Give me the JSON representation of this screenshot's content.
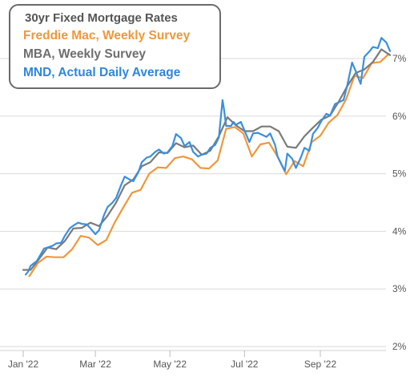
{
  "chart_data": {
    "type": "line",
    "title": "30yr Fixed Mortgage Rates",
    "x_ticks": [
      "Jan '22",
      "Mar '22",
      "May '22",
      "Jul '22",
      "Sep '22"
    ],
    "y_ticks": [
      "2%",
      "3%",
      "4%",
      "5%",
      "6%",
      "7%"
    ],
    "ylim": [
      2,
      7.5
    ],
    "grid": "horizontal",
    "legend_position": "top-left",
    "series": [
      {
        "name": "Freddie Mac, Weekly Survey",
        "color": "#f0973a",
        "points": [
          [
            "2022-01-06",
            3.22
          ],
          [
            "2022-01-13",
            3.45
          ],
          [
            "2022-01-20",
            3.56
          ],
          [
            "2022-01-27",
            3.55
          ],
          [
            "2022-02-03",
            3.55
          ],
          [
            "2022-02-10",
            3.69
          ],
          [
            "2022-02-17",
            3.92
          ],
          [
            "2022-02-24",
            3.89
          ],
          [
            "2022-03-03",
            3.76
          ],
          [
            "2022-03-10",
            3.85
          ],
          [
            "2022-03-17",
            4.16
          ],
          [
            "2022-03-24",
            4.42
          ],
          [
            "2022-03-31",
            4.67
          ],
          [
            "2022-04-07",
            4.72
          ],
          [
            "2022-04-14",
            5.0
          ],
          [
            "2022-04-21",
            5.11
          ],
          [
            "2022-04-28",
            5.1
          ],
          [
            "2022-05-05",
            5.27
          ],
          [
            "2022-05-12",
            5.3
          ],
          [
            "2022-05-19",
            5.25
          ],
          [
            "2022-05-26",
            5.1
          ],
          [
            "2022-06-02",
            5.09
          ],
          [
            "2022-06-09",
            5.23
          ],
          [
            "2022-06-16",
            5.78
          ],
          [
            "2022-06-23",
            5.81
          ],
          [
            "2022-06-30",
            5.7
          ],
          [
            "2022-07-07",
            5.3
          ],
          [
            "2022-07-14",
            5.51
          ],
          [
            "2022-07-21",
            5.54
          ],
          [
            "2022-07-28",
            5.3
          ],
          [
            "2022-08-04",
            4.99
          ],
          [
            "2022-08-11",
            5.22
          ],
          [
            "2022-08-18",
            5.13
          ],
          [
            "2022-08-25",
            5.55
          ],
          [
            "2022-09-01",
            5.66
          ],
          [
            "2022-09-08",
            5.89
          ],
          [
            "2022-09-15",
            6.02
          ],
          [
            "2022-09-22",
            6.29
          ],
          [
            "2022-09-29",
            6.7
          ],
          [
            "2022-10-06",
            6.66
          ],
          [
            "2022-10-13",
            6.92
          ],
          [
            "2022-10-20",
            6.94
          ],
          [
            "2022-10-27",
            7.08
          ]
        ]
      },
      {
        "name": "MBA, Weekly Survey",
        "color": "#7a7a7a",
        "points": [
          [
            "2022-01-01",
            3.33
          ],
          [
            "2022-01-07",
            3.33
          ],
          [
            "2022-01-14",
            3.52
          ],
          [
            "2022-01-21",
            3.72
          ],
          [
            "2022-01-28",
            3.69
          ],
          [
            "2022-02-04",
            3.83
          ],
          [
            "2022-02-11",
            4.05
          ],
          [
            "2022-02-18",
            4.06
          ],
          [
            "2022-02-25",
            4.15
          ],
          [
            "2022-03-04",
            4.09
          ],
          [
            "2022-03-11",
            4.27
          ],
          [
            "2022-03-18",
            4.5
          ],
          [
            "2022-03-25",
            4.8
          ],
          [
            "2022-04-01",
            4.9
          ],
          [
            "2022-04-08",
            5.13
          ],
          [
            "2022-04-15",
            5.2
          ],
          [
            "2022-04-22",
            5.37
          ],
          [
            "2022-04-29",
            5.36
          ],
          [
            "2022-05-06",
            5.53
          ],
          [
            "2022-05-13",
            5.46
          ],
          [
            "2022-05-20",
            5.49
          ],
          [
            "2022-05-27",
            5.33
          ],
          [
            "2022-06-03",
            5.4
          ],
          [
            "2022-06-10",
            5.65
          ],
          [
            "2022-06-17",
            5.98
          ],
          [
            "2022-06-24",
            5.84
          ],
          [
            "2022-07-01",
            5.74
          ],
          [
            "2022-07-08",
            5.74
          ],
          [
            "2022-07-15",
            5.82
          ],
          [
            "2022-07-22",
            5.82
          ],
          [
            "2022-07-29",
            5.74
          ],
          [
            "2022-08-05",
            5.47
          ],
          [
            "2022-08-12",
            5.45
          ],
          [
            "2022-08-19",
            5.65
          ],
          [
            "2022-08-26",
            5.8
          ],
          [
            "2022-09-02",
            5.94
          ],
          [
            "2022-09-09",
            6.01
          ],
          [
            "2022-09-16",
            6.25
          ],
          [
            "2022-09-23",
            6.52
          ],
          [
            "2022-09-30",
            6.75
          ],
          [
            "2022-10-07",
            6.81
          ],
          [
            "2022-10-14",
            6.94
          ],
          [
            "2022-10-21",
            7.16
          ],
          [
            "2022-10-28",
            7.06
          ]
        ]
      },
      {
        "name": "MND, Actual Daily Average",
        "color": "#3a8fde",
        "points": [
          [
            "2022-01-03",
            3.25
          ],
          [
            "2022-01-05",
            3.3
          ],
          [
            "2022-01-07",
            3.4
          ],
          [
            "2022-01-10",
            3.45
          ],
          [
            "2022-01-12",
            3.48
          ],
          [
            "2022-01-14",
            3.55
          ],
          [
            "2022-01-18",
            3.7
          ],
          [
            "2022-01-21",
            3.72
          ],
          [
            "2022-01-25",
            3.75
          ],
          [
            "2022-01-28",
            3.79
          ],
          [
            "2022-02-01",
            3.8
          ],
          [
            "2022-02-04",
            3.92
          ],
          [
            "2022-02-08",
            4.05
          ],
          [
            "2022-02-11",
            4.1
          ],
          [
            "2022-02-15",
            4.15
          ],
          [
            "2022-02-18",
            4.13
          ],
          [
            "2022-02-22",
            4.12
          ],
          [
            "2022-02-25",
            4.05
          ],
          [
            "2022-03-01",
            3.95
          ],
          [
            "2022-03-04",
            4.02
          ],
          [
            "2022-03-08",
            4.28
          ],
          [
            "2022-03-11",
            4.42
          ],
          [
            "2022-03-15",
            4.5
          ],
          [
            "2022-03-18",
            4.58
          ],
          [
            "2022-03-22",
            4.8
          ],
          [
            "2022-03-25",
            4.95
          ],
          [
            "2022-03-29",
            4.9
          ],
          [
            "2022-04-01",
            4.87
          ],
          [
            "2022-04-05",
            5.02
          ],
          [
            "2022-04-08",
            5.2
          ],
          [
            "2022-04-12",
            5.28
          ],
          [
            "2022-04-15",
            5.3
          ],
          [
            "2022-04-19",
            5.38
          ],
          [
            "2022-04-22",
            5.42
          ],
          [
            "2022-04-26",
            5.35
          ],
          [
            "2022-04-29",
            5.37
          ],
          [
            "2022-05-03",
            5.48
          ],
          [
            "2022-05-06",
            5.69
          ],
          [
            "2022-05-10",
            5.62
          ],
          [
            "2022-05-13",
            5.48
          ],
          [
            "2022-05-17",
            5.55
          ],
          [
            "2022-05-20",
            5.38
          ],
          [
            "2022-05-24",
            5.3
          ],
          [
            "2022-05-27",
            5.33
          ],
          [
            "2022-05-31",
            5.35
          ],
          [
            "2022-06-03",
            5.45
          ],
          [
            "2022-06-07",
            5.5
          ],
          [
            "2022-06-10",
            5.63
          ],
          [
            "2022-06-13",
            6.28
          ],
          [
            "2022-06-14",
            6.15
          ],
          [
            "2022-06-16",
            5.83
          ],
          [
            "2022-06-20",
            5.83
          ],
          [
            "2022-06-22",
            5.9
          ],
          [
            "2022-06-24",
            5.85
          ],
          [
            "2022-06-28",
            5.9
          ],
          [
            "2022-06-30",
            5.8
          ],
          [
            "2022-07-05",
            5.55
          ],
          [
            "2022-07-08",
            5.7
          ],
          [
            "2022-07-12",
            5.71
          ],
          [
            "2022-07-15",
            5.68
          ],
          [
            "2022-07-19",
            5.64
          ],
          [
            "2022-07-22",
            5.7
          ],
          [
            "2022-07-26",
            5.5
          ],
          [
            "2022-07-28",
            5.3
          ],
          [
            "2022-08-01",
            5.13
          ],
          [
            "2022-08-03",
            5.05
          ],
          [
            "2022-08-05",
            5.35
          ],
          [
            "2022-08-09",
            5.26
          ],
          [
            "2022-08-12",
            5.1
          ],
          [
            "2022-08-16",
            5.28
          ],
          [
            "2022-08-19",
            5.45
          ],
          [
            "2022-08-23",
            5.4
          ],
          [
            "2022-08-26",
            5.69
          ],
          [
            "2022-08-30",
            5.8
          ],
          [
            "2022-09-02",
            5.92
          ],
          [
            "2022-09-06",
            6.04
          ],
          [
            "2022-09-09",
            6.01
          ],
          [
            "2022-09-13",
            6.21
          ],
          [
            "2022-09-16",
            6.24
          ],
          [
            "2022-09-20",
            6.28
          ],
          [
            "2022-09-23",
            6.53
          ],
          [
            "2022-09-27",
            6.93
          ],
          [
            "2022-09-30",
            6.78
          ],
          [
            "2022-10-04",
            6.56
          ],
          [
            "2022-10-07",
            7.03
          ],
          [
            "2022-10-11",
            7.12
          ],
          [
            "2022-10-14",
            7.2
          ],
          [
            "2022-10-18",
            7.18
          ],
          [
            "2022-10-21",
            7.36
          ],
          [
            "2022-10-25",
            7.28
          ],
          [
            "2022-10-28",
            7.13
          ]
        ]
      }
    ]
  }
}
